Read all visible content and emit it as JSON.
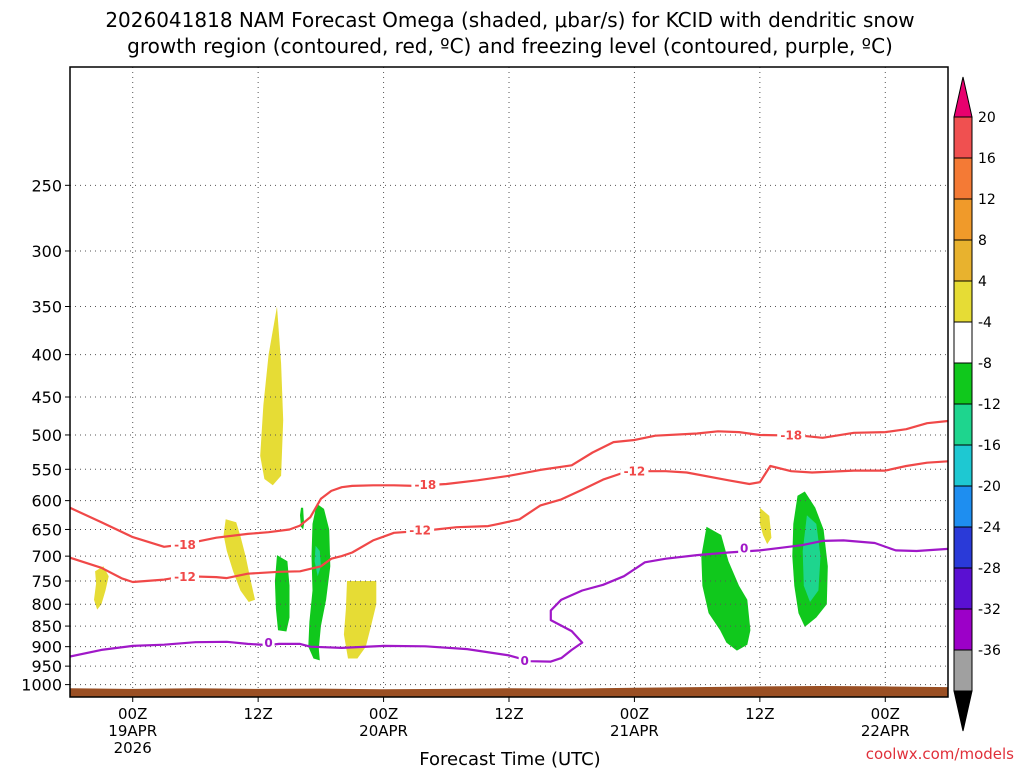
{
  "title_line1": "2026041818 NAM Forecast Omega (shaded, μbar/s) for KCID with dendritic snow",
  "title_line2": "growth region (contoured, red, ºC) and freezing level (contoured, purple, ºC)",
  "credit": "coolwx.com/models",
  "chart_data": {
    "type": "heatmap",
    "xlabel": "Forecast Time (UTC)",
    "ylabel": "",
    "x_unit": "hours from 2026-04-18 18Z",
    "xlim": [
      0,
      84
    ],
    "ylim": [
      1035,
      180
    ],
    "y_scale": "log-pressure (inverted)",
    "grid": true,
    "y_ticks": [
      250,
      300,
      350,
      400,
      450,
      500,
      550,
      600,
      650,
      700,
      750,
      800,
      850,
      900,
      950,
      1000
    ],
    "x_ticks": [
      {
        "x": 6,
        "lines": [
          "00Z",
          "19APR",
          "2026"
        ]
      },
      {
        "x": 18,
        "lines": [
          "12Z"
        ]
      },
      {
        "x": 30,
        "lines": [
          "00Z",
          "20APR"
        ]
      },
      {
        "x": 42,
        "lines": [
          "12Z"
        ]
      },
      {
        "x": 54,
        "lines": [
          "00Z",
          "21APR"
        ]
      },
      {
        "x": 66,
        "lines": [
          "12Z"
        ]
      },
      {
        "x": 78,
        "lines": [
          "00Z",
          "22APR"
        ]
      }
    ],
    "colorbar": {
      "levels": [
        {
          "label": "20",
          "color": "#f05050"
        },
        {
          "label": "16",
          "color": "#f47a35"
        },
        {
          "label": "12",
          "color": "#f09a2a"
        },
        {
          "label": "8",
          "color": "#e8b22e"
        },
        {
          "label": "4",
          "color": "#e6dc35"
        },
        {
          "label": "-4",
          "color": "#ffffff"
        },
        {
          "label": "-8",
          "color": "#10c81c"
        },
        {
          "label": "-12",
          "color": "#1ed58e"
        },
        {
          "label": "-16",
          "color": "#1ec8d2"
        },
        {
          "label": "-20",
          "color": "#1e8ef0"
        },
        {
          "label": "-24",
          "color": "#2a3ad8"
        },
        {
          "label": "-28",
          "color": "#5a10d2"
        },
        {
          "label": "-32",
          "color": "#9c00c8"
        },
        {
          "label": "-36",
          "color": "#a0a0a0"
        }
      ],
      "top_arrow_color": "#e8006e",
      "bottom_arrow_color": "#000000"
    },
    "series": [
      {
        "name": "-18",
        "color": "#f04848",
        "points": [
          [
            0,
            612
          ],
          [
            3,
            637
          ],
          [
            6,
            664
          ],
          [
            9,
            682
          ],
          [
            11,
            677
          ],
          [
            14,
            665
          ],
          [
            17,
            658
          ],
          [
            19,
            655
          ],
          [
            21,
            650
          ],
          [
            22,
            643
          ],
          [
            23,
            628
          ],
          [
            24,
            597
          ],
          [
            25,
            584
          ],
          [
            26,
            578
          ],
          [
            27,
            576
          ],
          [
            29,
            575
          ],
          [
            31,
            575
          ],
          [
            33,
            576
          ],
          [
            36,
            573
          ],
          [
            39,
            567
          ],
          [
            42,
            560
          ],
          [
            45,
            551
          ],
          [
            48,
            544
          ],
          [
            50,
            525
          ],
          [
            52,
            510
          ],
          [
            54,
            507
          ],
          [
            56,
            501
          ],
          [
            60,
            498
          ],
          [
            62,
            495
          ],
          [
            64,
            496
          ],
          [
            66,
            500
          ],
          [
            70,
            501
          ],
          [
            72,
            504
          ],
          [
            75,
            497
          ],
          [
            78,
            496
          ],
          [
            80,
            492
          ],
          [
            82,
            484
          ],
          [
            84,
            481
          ]
        ]
      },
      {
        "name": "-12",
        "color": "#f04848",
        "points": [
          [
            0,
            703
          ],
          [
            3,
            723
          ],
          [
            5,
            745
          ],
          [
            6,
            752
          ],
          [
            9,
            747
          ],
          [
            11,
            740
          ],
          [
            14,
            742
          ],
          [
            15,
            744
          ],
          [
            17,
            735
          ],
          [
            20,
            731
          ],
          [
            22,
            730
          ],
          [
            24,
            720
          ],
          [
            25,
            705
          ],
          [
            26,
            700
          ],
          [
            27,
            693
          ],
          [
            29,
            670
          ],
          [
            31,
            656
          ],
          [
            34,
            652
          ],
          [
            37,
            646
          ],
          [
            40,
            644
          ],
          [
            41,
            640
          ],
          [
            43,
            632
          ],
          [
            45,
            608
          ],
          [
            47,
            598
          ],
          [
            49,
            582
          ],
          [
            51,
            566
          ],
          [
            53,
            555
          ],
          [
            55,
            553
          ],
          [
            57,
            553
          ],
          [
            59,
            555
          ],
          [
            63,
            567
          ],
          [
            65,
            573
          ],
          [
            66,
            570
          ],
          [
            67,
            545
          ],
          [
            69,
            553
          ],
          [
            71,
            555
          ],
          [
            75,
            552
          ],
          [
            78,
            552
          ],
          [
            80,
            545
          ],
          [
            82,
            540
          ],
          [
            84,
            538
          ]
        ]
      },
      {
        "name": "0",
        "color": "#a018c8",
        "points": [
          [
            0,
            925
          ],
          [
            3,
            908
          ],
          [
            6,
            898
          ],
          [
            9,
            895
          ],
          [
            12,
            889
          ],
          [
            15,
            888
          ],
          [
            17,
            893
          ],
          [
            19,
            896
          ],
          [
            20,
            893
          ],
          [
            22,
            893
          ],
          [
            23,
            900
          ],
          [
            26,
            903
          ],
          [
            30,
            898
          ],
          [
            34,
            899
          ],
          [
            38,
            906
          ],
          [
            42,
            922
          ],
          [
            44,
            937
          ],
          [
            46,
            938
          ],
          [
            47,
            929
          ],
          [
            48,
            908
          ],
          [
            49,
            890
          ],
          [
            48,
            862
          ],
          [
            46,
            836
          ],
          [
            46,
            814
          ],
          [
            47,
            790
          ],
          [
            49,
            770
          ],
          [
            51,
            758
          ],
          [
            53,
            740
          ],
          [
            55,
            712
          ],
          [
            57,
            705
          ],
          [
            60,
            698
          ],
          [
            63,
            693
          ],
          [
            66,
            689
          ],
          [
            68,
            684
          ],
          [
            70,
            679
          ],
          [
            72,
            671
          ],
          [
            74,
            670
          ],
          [
            77,
            675
          ],
          [
            79,
            689
          ],
          [
            81,
            690
          ],
          [
            84,
            686
          ]
        ]
      }
    ],
    "contour_labels": [
      {
        "text": "-18",
        "x": 11,
        "y": 678,
        "color": "#f04848"
      },
      {
        "text": "-12",
        "x": 11,
        "y": 741,
        "color": "#f04848"
      },
      {
        "text": "0",
        "x": 19,
        "y": 890,
        "color": "#a018c8"
      },
      {
        "text": "-18",
        "x": 34,
        "y": 574,
        "color": "#f04848"
      },
      {
        "text": "-12",
        "x": 33.5,
        "y": 651,
        "color": "#f04848"
      },
      {
        "text": "0",
        "x": 43.5,
        "y": 935,
        "color": "#a018c8"
      },
      {
        "text": "-12",
        "x": 54,
        "y": 553,
        "color": "#f04848"
      },
      {
        "text": "0",
        "x": 64.5,
        "y": 684,
        "color": "#a018c8"
      },
      {
        "text": "-18",
        "x": 69,
        "y": 500,
        "color": "#f04848"
      }
    ],
    "shaded_regions": [
      {
        "level": "4",
        "color": "#e6dc35",
        "points": [
          [
            2.4,
            730
          ],
          [
            3.2,
            720
          ],
          [
            3.7,
            740
          ],
          [
            3.4,
            770
          ],
          [
            3.0,
            800
          ],
          [
            2.6,
            812
          ],
          [
            2.3,
            790
          ],
          [
            2.5,
            755
          ]
        ]
      },
      {
        "level": "4",
        "color": "#e6dc35",
        "points": [
          [
            14.9,
            632
          ],
          [
            15.9,
            637
          ],
          [
            16.3,
            662
          ],
          [
            16.8,
            700
          ],
          [
            17.3,
            750
          ],
          [
            17.7,
            790
          ],
          [
            17.1,
            795
          ],
          [
            16.3,
            770
          ],
          [
            15.6,
            730
          ],
          [
            15.0,
            690
          ],
          [
            14.7,
            660
          ]
        ]
      },
      {
        "level": "4",
        "color": "#e6dc35",
        "points": [
          [
            19.8,
            350
          ],
          [
            20.2,
            410
          ],
          [
            20.4,
            480
          ],
          [
            20.2,
            560
          ],
          [
            19.4,
            575
          ],
          [
            18.6,
            565
          ],
          [
            18.2,
            530
          ],
          [
            18.5,
            460
          ],
          [
            19.0,
            400
          ]
        ]
      },
      {
        "level": "4",
        "color": "#e6dc35",
        "points": [
          [
            26.5,
            750
          ],
          [
            29.3,
            750
          ],
          [
            29.3,
            800
          ],
          [
            28.8,
            850
          ],
          [
            28.3,
            900
          ],
          [
            27.5,
            930
          ],
          [
            26.6,
            930
          ],
          [
            26.2,
            870
          ],
          [
            26.4,
            810
          ]
        ]
      },
      {
        "level": "4",
        "color": "#e6dc35",
        "points": [
          [
            66.0,
            612
          ],
          [
            66.9,
            626
          ],
          [
            67.1,
            665
          ],
          [
            66.7,
            677
          ],
          [
            66.3,
            660
          ],
          [
            66.0,
            640
          ]
        ]
      },
      {
        "level": "-8",
        "color": "#10c81c",
        "points": [
          [
            19.8,
            698
          ],
          [
            20.8,
            710
          ],
          [
            21.0,
            760
          ],
          [
            21.0,
            830
          ],
          [
            20.7,
            863
          ],
          [
            19.9,
            860
          ],
          [
            19.7,
            810
          ],
          [
            19.6,
            750
          ]
        ]
      },
      {
        "level": "-8",
        "color": "#10c81c",
        "points": [
          [
            22.1,
            612
          ],
          [
            22.3,
            612
          ],
          [
            22.4,
            640
          ],
          [
            22.3,
            650
          ],
          [
            22.1,
            645
          ],
          [
            22.0,
            625
          ]
        ]
      },
      {
        "level": "-8",
        "color": "#10c81c",
        "points": [
          [
            23.6,
            605
          ],
          [
            24.3,
            614
          ],
          [
            24.8,
            650
          ],
          [
            24.9,
            720
          ],
          [
            24.5,
            790
          ],
          [
            24.0,
            850
          ],
          [
            23.8,
            905
          ],
          [
            23.9,
            935
          ],
          [
            23.3,
            930
          ],
          [
            22.8,
            900
          ],
          [
            22.9,
            840
          ],
          [
            23.2,
            770
          ],
          [
            23.1,
            700
          ],
          [
            23.2,
            640
          ]
        ]
      },
      {
        "level": "-8",
        "color": "#10c81c",
        "points": [
          [
            60.9,
            645
          ],
          [
            62.3,
            660
          ],
          [
            63.0,
            710
          ],
          [
            64.0,
            760
          ],
          [
            64.8,
            790
          ],
          [
            65.1,
            860
          ],
          [
            64.8,
            895
          ],
          [
            63.8,
            910
          ],
          [
            62.8,
            890
          ],
          [
            62.2,
            860
          ],
          [
            61.1,
            820
          ],
          [
            60.5,
            760
          ],
          [
            60.4,
            700
          ]
        ]
      },
      {
        "level": "-8",
        "color": "#10c81c",
        "points": [
          [
            69.6,
            592
          ],
          [
            70.3,
            585
          ],
          [
            71.3,
            612
          ],
          [
            72.1,
            650
          ],
          [
            72.5,
            720
          ],
          [
            72.4,
            800
          ],
          [
            71.4,
            830
          ],
          [
            70.3,
            852
          ],
          [
            69.7,
            820
          ],
          [
            69.3,
            760
          ],
          [
            69.1,
            700
          ],
          [
            69.2,
            640
          ]
        ]
      },
      {
        "level": "-12",
        "color": "#1ed58e",
        "points": [
          [
            23.5,
            680
          ],
          [
            23.9,
            690
          ],
          [
            24.0,
            720
          ],
          [
            23.7,
            740
          ],
          [
            23.4,
            710
          ]
        ]
      },
      {
        "level": "-12",
        "color": "#1ed58e",
        "points": [
          [
            70.5,
            625
          ],
          [
            71.4,
            640
          ],
          [
            71.8,
            700
          ],
          [
            71.6,
            770
          ],
          [
            70.8,
            795
          ],
          [
            70.2,
            760
          ],
          [
            70.1,
            690
          ]
        ]
      }
    ],
    "surface": {
      "color": "#9a4f23",
      "top": [
        [
          0,
          1010
        ],
        [
          6,
          1012
        ],
        [
          12,
          1010
        ],
        [
          18,
          1012
        ],
        [
          24,
          1011
        ],
        [
          30,
          1013
        ],
        [
          36,
          1012
        ],
        [
          42,
          1010
        ],
        [
          48,
          1011
        ],
        [
          54,
          1009
        ],
        [
          60,
          1007
        ],
        [
          66,
          1005
        ],
        [
          72,
          1004
        ],
        [
          78,
          1005
        ],
        [
          84,
          1007
        ]
      ]
    }
  }
}
